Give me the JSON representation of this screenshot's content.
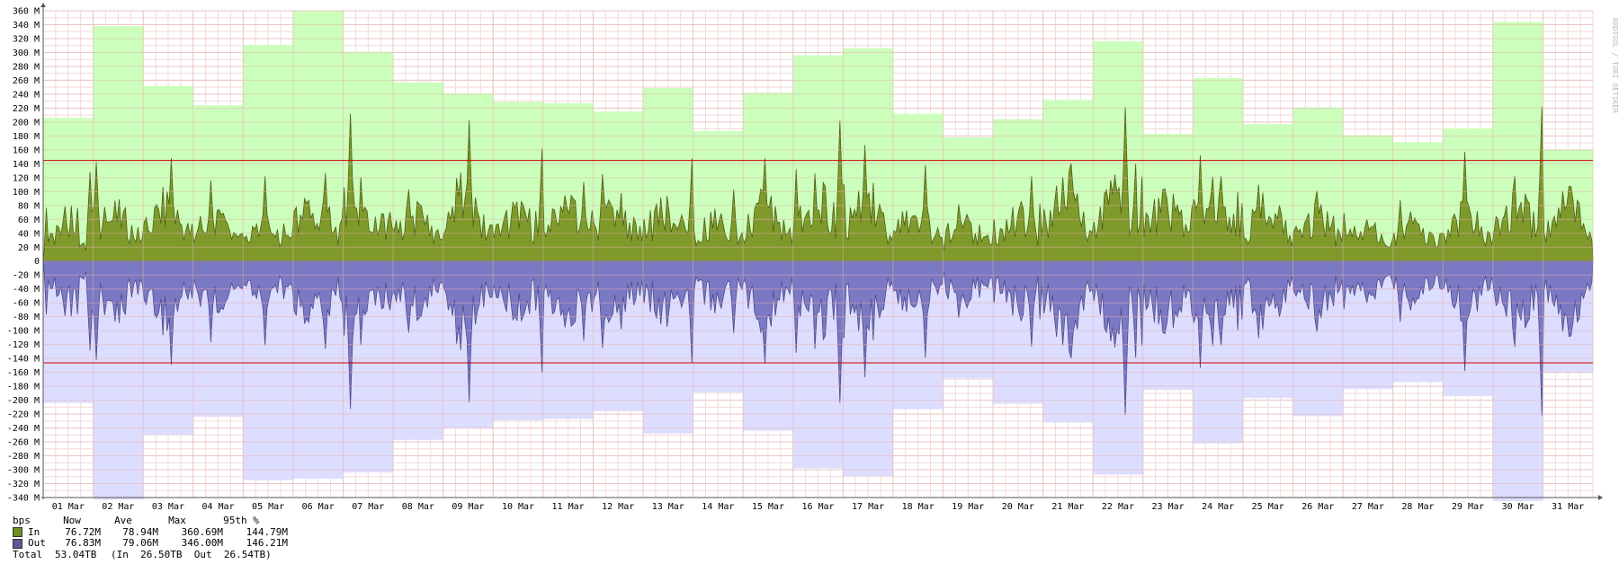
{
  "watermark": "RRDTOOL / TOBI OETIKER",
  "chart_data": {
    "type": "area",
    "y_unit": "bps",
    "ylim": [
      -340000000,
      360000000
    ],
    "y_ticks": [
      "360 M",
      "340 M",
      "320 M",
      "300 M",
      "280 M",
      "260 M",
      "240 M",
      "220 M",
      "200 M",
      "180 M",
      "160 M",
      "140 M",
      "120 M",
      "100 M",
      "80 M",
      "60 M",
      "40 M",
      "20 M",
      "0",
      "-20 M",
      "-40 M",
      "-60 M",
      "-80 M",
      "-100 M",
      "-120 M",
      "-140 M",
      "-160 M",
      "-180 M",
      "-200 M",
      "-220 M",
      "-240 M",
      "-260 M",
      "-280 M",
      "-300 M",
      "-320 M",
      "-340 M"
    ],
    "x_ticks": [
      "01 Mar",
      "02 Mar",
      "03 Mar",
      "04 Mar",
      "05 Mar",
      "06 Mar",
      "07 Mar",
      "08 Mar",
      "09 Mar",
      "10 Mar",
      "11 Mar",
      "12 Mar",
      "13 Mar",
      "14 Mar",
      "15 Mar",
      "16 Mar",
      "17 Mar",
      "18 Mar",
      "19 Mar",
      "20 Mar",
      "21 Mar",
      "22 Mar",
      "23 Mar",
      "24 Mar",
      "25 Mar",
      "26 Mar",
      "27 Mar",
      "28 Mar",
      "29 Mar",
      "30 Mar",
      "31 Mar"
    ],
    "percentile_95_in_M": 144.79,
    "percentile_95_out_M": 146.21,
    "series": [
      {
        "name": "In",
        "color": "#7f9a2a",
        "max_color": "#ccffbb",
        "daily_max_M": [
          206,
          338,
          252,
          224,
          311,
          360,
          301,
          257,
          241,
          229,
          227,
          215,
          249,
          187,
          242,
          296,
          306,
          212,
          178,
          204,
          232,
          316,
          183,
          263,
          197,
          221,
          181,
          171,
          191,
          344,
          160
        ],
        "daily_peak_M": [
          128,
          143,
          148,
          116,
          122,
          127,
          212,
          103,
          203,
          162,
          114,
          125,
          148,
          103,
          148,
          202,
          167,
          138,
          82,
          122,
          141,
          222,
          104,
          152,
          110,
          101,
          69,
          88,
          157,
          222,
          83
        ],
        "daily_base_M": [
          32,
          48,
          58,
          42,
          36,
          55,
          58,
          50,
          62,
          48,
          62,
          56,
          52,
          44,
          58,
          72,
          60,
          46,
          38,
          48,
          72,
          68,
          60,
          72,
          54,
          46,
          40,
          40,
          48,
          60,
          60
        ]
      },
      {
        "name": "Out",
        "color": "#7b78c4",
        "max_color": "#ddddff",
        "daily_max_M": [
          204,
          343,
          250,
          224,
          315,
          313,
          304,
          257,
          240,
          229,
          227,
          216,
          248,
          189,
          244,
          298,
          309,
          213,
          169,
          205,
          232,
          307,
          185,
          262,
          197,
          223,
          184,
          174,
          194,
          345,
          160
        ],
        "daily_peak_M": [
          128,
          141,
          146,
          118,
          123,
          128,
          210,
          105,
          205,
          160,
          115,
          126,
          147,
          105,
          146,
          203,
          165,
          140,
          80,
          122,
          141,
          218,
          105,
          150,
          112,
          102,
          70,
          88,
          155,
          222,
          82
        ],
        "daily_base_M": [
          32,
          50,
          58,
          42,
          36,
          55,
          58,
          50,
          62,
          48,
          62,
          56,
          52,
          44,
          58,
          72,
          60,
          46,
          38,
          48,
          72,
          68,
          60,
          72,
          54,
          46,
          40,
          40,
          48,
          60,
          60
        ]
      }
    ]
  },
  "legend": {
    "unit_label": "bps",
    "headers": [
      "Now",
      "Ave",
      "Max",
      "95th %"
    ],
    "rows": [
      {
        "label": "In",
        "color": "#6b8e23",
        "now": "76.72M",
        "ave": "78.94M",
        "max": "360.69M",
        "p95": "144.79M"
      },
      {
        "label": "Out",
        "color": "#5a5a9a",
        "now": "76.83M",
        "ave": "79.06M",
        "max": "346.00M",
        "p95": "146.21M"
      }
    ],
    "total_label": "Total",
    "total_value": "53.04TB",
    "total_detail": "(In  26.50TB  Out  26.54TB)"
  }
}
